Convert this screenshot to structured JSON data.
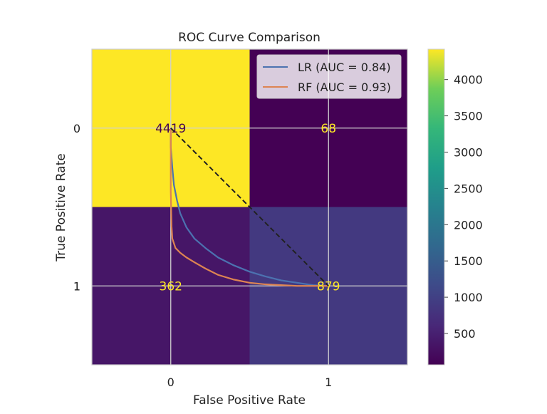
{
  "chart_data": {
    "type": "heatmap",
    "title": "ROC Curve Comparison",
    "xlabel": "False Positive Rate",
    "ylabel": "True Positive Rate",
    "x_ticks": [
      "0",
      "1"
    ],
    "y_ticks": [
      "0",
      "1"
    ],
    "matrix": [
      [
        4419,
        68
      ],
      [
        362,
        879
      ]
    ],
    "cell_labels": [
      [
        "4419",
        "68"
      ],
      [
        "362",
        "879"
      ]
    ],
    "xlim": [
      -0.5,
      1.5
    ],
    "ylim": [
      1.5,
      -0.5
    ],
    "grid": true,
    "colormap": "viridis",
    "colorbar": {
      "range": [
        68,
        4419
      ],
      "ticks": [
        500,
        1000,
        1500,
        2000,
        2500,
        3000,
        3500,
        4000
      ],
      "tick_labels": [
        "500",
        "1000",
        "1500",
        "2000",
        "2500",
        "3000",
        "3500",
        "4000"
      ]
    },
    "legend": {
      "position": "upper right",
      "entries": [
        "LR (AUC = 0.84)",
        "RF (AUC = 0.93)"
      ]
    },
    "series": [
      {
        "name": "LR (AUC = 0.84)",
        "color": "#4c72b0",
        "x": [
          0,
          0.0,
          0.01,
          0.02,
          0.04,
          0.06,
          0.1,
          0.15,
          0.22,
          0.3,
          0.4,
          0.5,
          0.6,
          0.7,
          0.8,
          0.9,
          1.0
        ],
        "y": [
          0,
          0.12,
          0.25,
          0.36,
          0.46,
          0.54,
          0.63,
          0.7,
          0.76,
          0.82,
          0.87,
          0.91,
          0.94,
          0.965,
          0.98,
          0.995,
          1.0
        ]
      },
      {
        "name": "RF (AUC = 0.93)",
        "color": "#dd8452",
        "x": [
          0,
          0.0,
          0.005,
          0.01,
          0.03,
          0.06,
          0.1,
          0.15,
          0.22,
          0.3,
          0.4,
          0.5,
          0.6,
          0.7,
          0.8,
          1.0
        ],
        "y": [
          0,
          0.4,
          0.62,
          0.7,
          0.76,
          0.79,
          0.82,
          0.85,
          0.89,
          0.93,
          0.96,
          0.98,
          0.99,
          0.995,
          1.0,
          1.0
        ]
      },
      {
        "name": "",
        "style": "dashed",
        "color": "#222222",
        "x": [
          0,
          1
        ],
        "y": [
          0,
          1
        ]
      }
    ]
  }
}
